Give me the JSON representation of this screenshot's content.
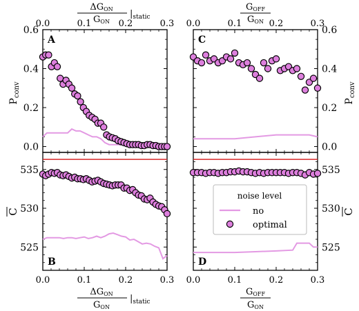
{
  "axis_titles": {
    "left_x_num": "ΔG",
    "left_x_num_sub": "ON",
    "left_x_den": "G",
    "left_x_den_sub": "ON",
    "left_x_suffix": "|",
    "left_x_suffix_sub": "static",
    "right_x_num": "G",
    "right_x_num_sub": "OFF",
    "right_x_den": "G",
    "right_x_den_sub": "ON",
    "y_top": "P",
    "y_top_sub": "conv",
    "y_bottom": "C"
  },
  "legend": {
    "title": "noise level",
    "items": [
      "no",
      "optimal"
    ]
  },
  "colors": {
    "marker_fill": "#dd7fdd",
    "no_noise_line": "#e399e3",
    "reference_line": "#d62728",
    "axis": "#000000"
  },
  "chart_data": [
    {
      "panel": "A",
      "type": "scatter",
      "xlim": [
        0,
        0.3
      ],
      "ylim": [
        -0.03,
        0.6
      ],
      "xticks": [
        "0.0",
        "0.1",
        "0.2",
        "0.3"
      ],
      "yticks": [
        "0.0",
        "0.2",
        "0.4",
        "0.6"
      ],
      "series": [
        {
          "name": "optimal",
          "x": [
            0.0,
            0.007,
            0.014,
            0.021,
            0.028,
            0.035,
            0.042,
            0.049,
            0.056,
            0.063,
            0.07,
            0.077,
            0.084,
            0.091,
            0.098,
            0.105,
            0.112,
            0.119,
            0.126,
            0.133,
            0.14,
            0.147,
            0.154,
            0.161,
            0.168,
            0.175,
            0.182,
            0.189,
            0.196,
            0.203,
            0.21,
            0.217,
            0.224,
            0.231,
            0.238,
            0.245,
            0.252,
            0.259,
            0.266,
            0.273,
            0.28,
            0.287,
            0.294,
            0.3
          ],
          "y": [
            0.46,
            0.47,
            0.47,
            0.41,
            0.43,
            0.41,
            0.35,
            0.32,
            0.34,
            0.32,
            0.3,
            0.27,
            0.26,
            0.23,
            0.2,
            0.18,
            0.16,
            0.15,
            0.14,
            0.12,
            0.12,
            0.1,
            0.06,
            0.05,
            0.045,
            0.04,
            0.03,
            0.025,
            0.02,
            0.015,
            0.01,
            0.01,
            0.01,
            0.01,
            0.005,
            0.005,
            0.01,
            0.01,
            0.005,
            0.005,
            0.0,
            0.0,
            0.0,
            0.0
          ]
        },
        {
          "name": "no",
          "x": [
            0.0,
            0.01,
            0.02,
            0.03,
            0.04,
            0.05,
            0.06,
            0.07,
            0.08,
            0.09,
            0.1,
            0.11,
            0.12,
            0.13,
            0.14,
            0.15,
            0.16,
            0.17,
            0.18,
            0.19,
            0.2,
            0.21,
            0.22,
            0.23,
            0.24,
            0.25,
            0.26,
            0.27,
            0.28,
            0.29,
            0.3
          ],
          "y": [
            0.05,
            0.07,
            0.07,
            0.07,
            0.07,
            0.07,
            0.07,
            0.09,
            0.08,
            0.08,
            0.07,
            0.06,
            0.05,
            0.05,
            0.04,
            0.02,
            0.01,
            0.01,
            0.01,
            0.01,
            0.01,
            0.01,
            0.01,
            0.01,
            0.01,
            0.0,
            0.0,
            0.0,
            0.0,
            0.0,
            0.0
          ]
        }
      ]
    },
    {
      "panel": "B",
      "type": "scatter",
      "xlim": [
        0,
        0.3
      ],
      "ylim": [
        522,
        537.2
      ],
      "xticks": [
        "0.0",
        "0.1",
        "0.2",
        "0.3"
      ],
      "yticks": [
        "525",
        "530",
        "535"
      ],
      "reference_line": 536.3,
      "series": [
        {
          "name": "optimal",
          "x": [
            0.0,
            0.007,
            0.014,
            0.021,
            0.028,
            0.035,
            0.042,
            0.049,
            0.056,
            0.063,
            0.07,
            0.077,
            0.084,
            0.091,
            0.098,
            0.105,
            0.112,
            0.119,
            0.126,
            0.133,
            0.14,
            0.147,
            0.154,
            0.161,
            0.168,
            0.175,
            0.182,
            0.189,
            0.196,
            0.203,
            0.21,
            0.217,
            0.224,
            0.231,
            0.238,
            0.245,
            0.252,
            0.259,
            0.266,
            0.273,
            0.28,
            0.287,
            0.294,
            0.3
          ],
          "y": [
            534.4,
            534.2,
            534.4,
            534.6,
            534.5,
            534.6,
            534.3,
            534.2,
            534.3,
            534.1,
            533.9,
            534.0,
            533.8,
            533.8,
            533.7,
            533.8,
            533.6,
            533.4,
            533.5,
            533.6,
            533.4,
            533.2,
            533.1,
            533.0,
            532.9,
            533.0,
            533.0,
            533.0,
            532.6,
            532.6,
            532.3,
            532.4,
            532.0,
            531.7,
            531.6,
            531.2,
            531.1,
            531.3,
            530.8,
            530.5,
            530.3,
            530.2,
            529.8,
            529.3
          ]
        },
        {
          "name": "no",
          "x": [
            0.0,
            0.01,
            0.02,
            0.03,
            0.04,
            0.05,
            0.06,
            0.07,
            0.08,
            0.09,
            0.1,
            0.11,
            0.12,
            0.13,
            0.14,
            0.15,
            0.16,
            0.17,
            0.18,
            0.19,
            0.2,
            0.21,
            0.22,
            0.23,
            0.24,
            0.25,
            0.26,
            0.27,
            0.28,
            0.29,
            0.3
          ],
          "y": [
            526.0,
            526.2,
            526.2,
            526.2,
            526.2,
            526.1,
            526.2,
            526.2,
            526.1,
            526.2,
            526.3,
            526.1,
            526.2,
            526.4,
            526.2,
            526.4,
            526.7,
            526.8,
            526.6,
            526.4,
            526.3,
            525.9,
            526.0,
            525.7,
            525.4,
            525.5,
            525.4,
            525.1,
            524.9,
            523.5,
            523.9
          ]
        }
      ]
    },
    {
      "panel": "C",
      "type": "scatter",
      "xlim": [
        0,
        0.3
      ],
      "ylim": [
        -0.03,
        0.6
      ],
      "xticks": [
        "0.0",
        "0.1",
        "0.2",
        "0.3"
      ],
      "yticks": [
        "0.0",
        "0.2",
        "0.4",
        "0.6"
      ],
      "series": [
        {
          "name": "optimal",
          "x": [
            0.0,
            0.01,
            0.02,
            0.03,
            0.04,
            0.05,
            0.06,
            0.07,
            0.08,
            0.09,
            0.1,
            0.11,
            0.12,
            0.13,
            0.14,
            0.15,
            0.16,
            0.17,
            0.18,
            0.19,
            0.2,
            0.21,
            0.22,
            0.23,
            0.24,
            0.25,
            0.26,
            0.27,
            0.28,
            0.29,
            0.3
          ],
          "y": [
            0.46,
            0.44,
            0.43,
            0.47,
            0.44,
            0.45,
            0.43,
            0.44,
            0.46,
            0.45,
            0.48,
            0.43,
            0.42,
            0.43,
            0.4,
            0.37,
            0.35,
            0.43,
            0.4,
            0.44,
            0.45,
            0.39,
            0.4,
            0.41,
            0.39,
            0.4,
            0.36,
            0.29,
            0.33,
            0.35,
            0.3
          ]
        },
        {
          "name": "no",
          "x": [
            0.0,
            0.1,
            0.15,
            0.2,
            0.25,
            0.28,
            0.3
          ],
          "y": [
            0.04,
            0.04,
            0.05,
            0.06,
            0.06,
            0.06,
            0.05
          ]
        }
      ]
    },
    {
      "panel": "D",
      "type": "scatter",
      "xlim": [
        0,
        0.3
      ],
      "ylim": [
        522,
        537.2
      ],
      "xticks": [
        "0.0",
        "0.1",
        "0.2",
        "0.3"
      ],
      "yticks": [
        "525",
        "530",
        "535"
      ],
      "reference_line": 536.3,
      "series": [
        {
          "name": "optimal",
          "x": [
            0.0,
            0.01,
            0.02,
            0.03,
            0.04,
            0.05,
            0.06,
            0.07,
            0.08,
            0.09,
            0.1,
            0.11,
            0.12,
            0.13,
            0.14,
            0.15,
            0.16,
            0.17,
            0.18,
            0.19,
            0.2,
            0.21,
            0.22,
            0.23,
            0.24,
            0.25,
            0.26,
            0.27,
            0.28,
            0.29,
            0.3
          ],
          "y": [
            534.6,
            534.6,
            534.6,
            534.5,
            534.6,
            534.6,
            534.5,
            534.6,
            534.6,
            534.7,
            534.7,
            534.8,
            534.7,
            534.7,
            534.6,
            534.5,
            534.6,
            534.5,
            534.6,
            534.6,
            534.6,
            534.6,
            534.6,
            534.5,
            534.6,
            534.6,
            534.5,
            534.3,
            534.6,
            534.4,
            534.5
          ]
        },
        {
          "name": "no",
          "x": [
            0.0,
            0.05,
            0.1,
            0.15,
            0.2,
            0.24,
            0.25,
            0.28,
            0.29,
            0.3
          ],
          "y": [
            524.3,
            524.3,
            524.3,
            524.4,
            524.5,
            524.6,
            525.5,
            525.5,
            525.0,
            525.0
          ]
        }
      ]
    }
  ],
  "panel_labels": [
    "A",
    "B",
    "C",
    "D"
  ]
}
